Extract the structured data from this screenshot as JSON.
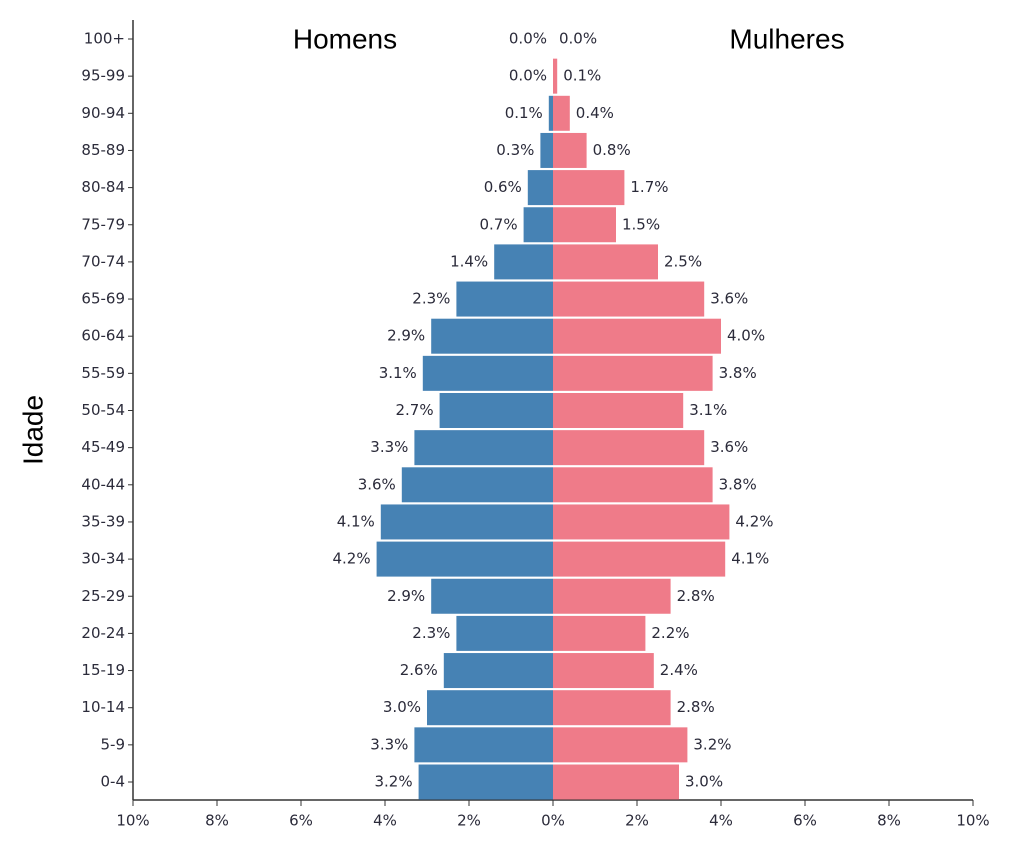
{
  "chart_data": {
    "type": "pyramid",
    "y_label": "Idade",
    "categories": [
      "0-4",
      "5-9",
      "10-14",
      "15-19",
      "20-24",
      "25-29",
      "30-34",
      "35-39",
      "40-44",
      "45-49",
      "50-54",
      "55-59",
      "60-64",
      "65-69",
      "70-74",
      "75-79",
      "80-84",
      "85-89",
      "90-94",
      "95-99",
      "100+"
    ],
    "series": [
      {
        "name": "Homens",
        "color": "#4682b4",
        "values": [
          -3.2,
          -3.3,
          -3.0,
          -2.6,
          -2.3,
          -2.9,
          -4.2,
          -4.1,
          -3.6,
          -3.3,
          -2.7,
          -3.1,
          -2.9,
          -2.3,
          -1.4,
          -0.7,
          -0.6,
          -0.3,
          -0.1,
          0,
          0
        ],
        "value_labels": [
          "3.2%",
          "3.3%",
          "3.0%",
          "2.6%",
          "2.3%",
          "2.9%",
          "4.2%",
          "4.1%",
          "3.6%",
          "3.3%",
          "2.7%",
          "3.1%",
          "2.9%",
          "2.3%",
          "1.4%",
          "0.7%",
          "0.6%",
          "0.3%",
          "0.1%",
          "0.0%",
          "0.0%"
        ]
      },
      {
        "name": "Mulheres",
        "color": "#ef7b89",
        "values": [
          3.0,
          3.2,
          2.8,
          2.4,
          2.2,
          2.8,
          4.1,
          4.2,
          3.8,
          3.6,
          3.1,
          3.8,
          4.0,
          3.6,
          2.5,
          1.5,
          1.7,
          0.8,
          0.4,
          0.1,
          0
        ],
        "value_labels": [
          "3.0%",
          "3.2%",
          "2.8%",
          "2.4%",
          "2.2%",
          "2.8%",
          "4.1%",
          "4.2%",
          "3.8%",
          "3.6%",
          "3.1%",
          "3.8%",
          "4.0%",
          "3.6%",
          "2.5%",
          "1.5%",
          "1.7%",
          "0.8%",
          "0.4%",
          "0.1%",
          "0.0%"
        ]
      }
    ],
    "xlim": [
      -10,
      10
    ],
    "xticks": [
      {
        "value": -10,
        "label": "10%"
      },
      {
        "value": -8,
        "label": "8%"
      },
      {
        "value": -6,
        "label": "6%"
      },
      {
        "value": -4,
        "label": "4%"
      },
      {
        "value": -2,
        "label": "2%"
      },
      {
        "value": 0,
        "label": "0%"
      },
      {
        "value": 2,
        "label": "2%"
      },
      {
        "value": 4,
        "label": "4%"
      },
      {
        "value": 6,
        "label": "6%"
      },
      {
        "value": 8,
        "label": "8%"
      },
      {
        "value": 10,
        "label": "10%"
      }
    ]
  }
}
